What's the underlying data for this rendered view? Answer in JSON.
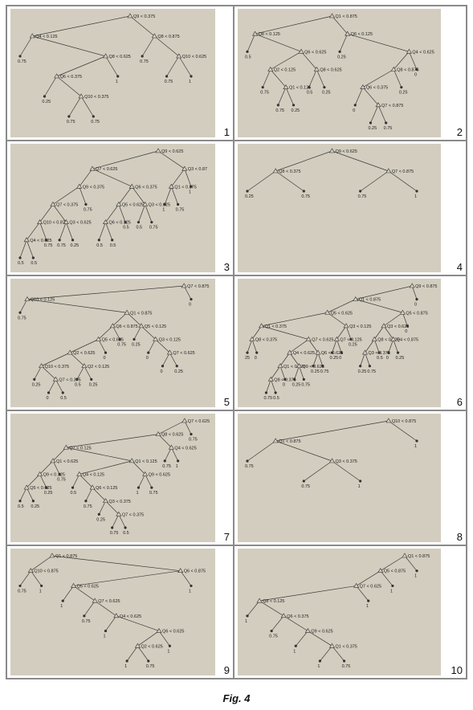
{
  "caption": "Fig. 4",
  "trees": [
    {
      "number": "1",
      "nodes": {
        "n0": {
          "t": "Q9 < 0.375",
          "k": [
            "n1",
            "n2"
          ]
        },
        "n1": {
          "t": "Q4 < 0.125",
          "k": [
            "l1",
            "n3"
          ]
        },
        "l1": {
          "t": "0.75"
        },
        "n3": {
          "t": "Q8 < 0.625",
          "k": [
            "n4",
            "l2"
          ]
        },
        "n4": {
          "t": "Q6 < 0.375",
          "k": [
            "l3",
            "n5"
          ]
        },
        "l3": {
          "t": "0.25"
        },
        "n5": {
          "t": "Q10 < 0.375",
          "k": [
            "l4",
            "l5"
          ]
        },
        "l4": {
          "t": "0.75"
        },
        "l5": {
          "t": "0.75"
        },
        "l2": {
          "t": "1"
        },
        "n2": {
          "t": "Q8 < 0.875",
          "k": [
            "l6",
            "n6"
          ]
        },
        "l6": {
          "t": "0.75"
        },
        "n6": {
          "t": "Q10 < 0.625",
          "k": [
            "l7",
            "l8"
          ]
        },
        "l7": {
          "t": "0.75"
        },
        "l8": {
          "t": "1"
        }
      }
    },
    {
      "number": "2",
      "nodes": {
        "n0": {
          "t": "Q1 < 0.875",
          "k": [
            "n1",
            "n2"
          ]
        },
        "n1": {
          "t": "Q8 < 0.125",
          "k": [
            "l1",
            "n3"
          ]
        },
        "l1": {
          "t": "0.5"
        },
        "n3": {
          "t": "Q6 < 0.625",
          "k": [
            "n4",
            "n5"
          ]
        },
        "n4": {
          "t": "Q2 < 0.125",
          "k": [
            "l2",
            "n6"
          ]
        },
        "l2": {
          "t": "0.75"
        },
        "n6": {
          "t": "Q1 < 0.125",
          "k": [
            "l3",
            "l4"
          ]
        },
        "l3": {
          "t": "0.75"
        },
        "l4": {
          "t": "0.25"
        },
        "n5": {
          "t": "Q8 < 0.625",
          "k": [
            "l5",
            "l6"
          ]
        },
        "l5": {
          "t": "0.5"
        },
        "l6": {
          "t": "0.25"
        },
        "n2": {
          "t": "Q6 < 0.125",
          "k": [
            "l7",
            "n7"
          ]
        },
        "l7": {
          "t": "0.25"
        },
        "n7": {
          "t": "Q4 < 0.625",
          "k": [
            "n8",
            "l8"
          ]
        },
        "n8": {
          "t": "Q8 < 0.875",
          "k": [
            "n9",
            "l9"
          ]
        },
        "n9": {
          "t": "Q6 < 0.375",
          "k": [
            "l10",
            "n10"
          ]
        },
        "l10": {
          "t": "0"
        },
        "n10": {
          "t": "Q7 < 0.875",
          "k": [
            "l11",
            "l12"
          ]
        },
        "l11": {
          "t": "0.25"
        },
        "l12": {
          "t": "0.75"
        },
        "l9": {
          "t": "0.25"
        },
        "l8": {
          "t": "0"
        }
      }
    },
    {
      "number": "3",
      "nodes": {
        "n0": {
          "t": "Q9 < 0.625",
          "k": [
            "n1",
            "n2"
          ]
        },
        "n1": {
          "t": "Q7 < 0.625",
          "k": [
            "n3",
            "n4"
          ]
        },
        "n3": {
          "t": "Q9 < 0.375",
          "k": [
            "n5",
            "l1"
          ]
        },
        "n5": {
          "t": "Q7 < 0.375",
          "k": [
            "n6",
            "n7"
          ]
        },
        "n6": {
          "t": "Q10 < 0.875",
          "k": [
            "n8",
            "l2"
          ]
        },
        "n8": {
          "t": "Q4 < 0.625",
          "k": [
            "l3",
            "l4"
          ]
        },
        "l3": {
          "t": "0.5"
        },
        "l4": {
          "t": "0.5"
        },
        "l2": {
          "t": "0.75"
        },
        "n7": {
          "t": "Q3 < 0.625",
          "k": [
            "l5",
            "l6"
          ]
        },
        "l5": {
          "t": "0.75"
        },
        "l6": {
          "t": "0.25"
        },
        "l1": {
          "t": "0.75"
        },
        "n4": {
          "t": "Q6 < 0.375",
          "k": [
            "n9",
            "n10"
          ]
        },
        "n9": {
          "t": "Q5 < 0.625",
          "k": [
            "n11",
            "l7"
          ]
        },
        "n11": {
          "t": "Q6 < 0.125",
          "k": [
            "l8",
            "l9"
          ]
        },
        "l8": {
          "t": "0.5"
        },
        "l9": {
          "t": "0.5"
        },
        "l7": {
          "t": "0.5"
        },
        "n10": {
          "t": "Q3 < 0.625",
          "k": [
            "l10",
            "l11"
          ]
        },
        "l10": {
          "t": "0.5"
        },
        "l11": {
          "t": "0.75"
        },
        "n2": {
          "t": "Q3 < 0.87",
          "k": [
            "n12",
            "l12"
          ]
        },
        "n12": {
          "t": "Q1 < 0.875",
          "k": [
            "l13",
            "l14"
          ]
        },
        "l13": {
          "t": "1"
        },
        "l14": {
          "t": "0.75"
        },
        "l12": {
          "t": "1"
        }
      }
    },
    {
      "number": "4",
      "nodes": {
        "n0": {
          "t": "Q9 < 0.625",
          "k": [
            "n1",
            "n2"
          ]
        },
        "n1": {
          "t": "Q8 < 0.375",
          "k": [
            "l1",
            "l2"
          ]
        },
        "l1": {
          "t": "0.25"
        },
        "l2": {
          "t": "0.75"
        },
        "n2": {
          "t": "Q7 < 0.875",
          "k": [
            "l3",
            "l4"
          ]
        },
        "l3": {
          "t": "0.75"
        },
        "l4": {
          "t": "1"
        }
      }
    },
    {
      "number": "5",
      "nodes": {
        "n0": {
          "t": "Q7 < 0.875",
          "k": [
            "n1",
            "l1"
          ]
        },
        "l1": {
          "t": "0"
        },
        "n1": {
          "t": "Q10 < 0.125",
          "k": [
            "l2",
            "n2"
          ]
        },
        "l2": {
          "t": "0.75"
        },
        "n2": {
          "t": "Q1 < 0.875",
          "k": [
            "n3",
            "n4"
          ]
        },
        "n3": {
          "t": "Q6 < 0.875",
          "k": [
            "n5",
            "l3"
          ]
        },
        "n5": {
          "t": "Q5 < 0.625",
          "k": [
            "n6",
            "l4"
          ]
        },
        "n6": {
          "t": "Q2 < 0.625",
          "k": [
            "n7",
            "n8"
          ]
        },
        "n7": {
          "t": "Q10 < 0.375",
          "k": [
            "l5",
            "n9"
          ]
        },
        "l5": {
          "t": "0.25"
        },
        "n9": {
          "t": "Q7 < 0.375",
          "k": [
            "l6",
            "l7"
          ]
        },
        "l6": {
          "t": "0"
        },
        "l7": {
          "t": "0.5"
        },
        "n8": {
          "t": "Q2 < 0.125",
          "k": [
            "l8",
            "l9"
          ]
        },
        "l8": {
          "t": "0.5"
        },
        "l9": {
          "t": "0.25"
        },
        "l4": {
          "t": "0"
        },
        "l3": {
          "t": "0.75"
        },
        "n4": {
          "t": "Q5 < 0.125",
          "k": [
            "l10",
            "n10"
          ]
        },
        "l10": {
          "t": "0.25"
        },
        "n10": {
          "t": "Q3 < 0.125",
          "k": [
            "l11",
            "n11"
          ]
        },
        "l11": {
          "t": "0"
        },
        "n11": {
          "t": "Q7 < 0.625",
          "k": [
            "l12",
            "l13"
          ]
        },
        "l12": {
          "t": "0"
        },
        "l13": {
          "t": "0.25"
        }
      }
    },
    {
      "number": "6",
      "nodes": {
        "n0": {
          "t": "Q9 < 0.875",
          "k": [
            "n1",
            "l1"
          ]
        },
        "l1": {
          "t": "0"
        },
        "n1": {
          "t": "Q1 < 0.875",
          "k": [
            "n2",
            "n3"
          ]
        },
        "n2": {
          "t": "Q5 < 0.625",
          "k": [
            "n4",
            "n5"
          ]
        },
        "n4": {
          "t": "Q1 < 0.375",
          "k": [
            "n6",
            "n7"
          ]
        },
        "n6": {
          "t": "Q8 < 0.375",
          "k": [
            "l2",
            "l3"
          ]
        },
        "l2": {
          "t": "25"
        },
        "l3": {
          "t": "0"
        },
        "n7": {
          "t": "Q7 < 0.625",
          "k": [
            "n8",
            "n9"
          ]
        },
        "n8": {
          "t": "Q4 < 0.625",
          "k": [
            "n10",
            "n11"
          ]
        },
        "n10": {
          "t": "Q1 < 0.625",
          "k": [
            "n12",
            "l4"
          ]
        },
        "n12": {
          "t": "Q8 < 0.375",
          "k": [
            "l5",
            "l6"
          ]
        },
        "l5": {
          "t": "0.75"
        },
        "l6": {
          "t": "0.5"
        },
        "l4": {
          "t": "0"
        },
        "n11": {
          "t": "Q9 < 0.625",
          "k": [
            "l7",
            "l8"
          ]
        },
        "l7": {
          "t": "0.25"
        },
        "l8": {
          "t": "0.75"
        },
        "n9": {
          "t": "Q6 < 0.625",
          "k": [
            "l9",
            "l10"
          ]
        },
        "l9": {
          "t": "0.25"
        },
        "l10": {
          "t": "0.75"
        },
        "n5": {
          "t": "Q3 < 0.125",
          "k": [
            "n13",
            "l11"
          ]
        },
        "n13": {
          "t": "Q7 < 0.125",
          "k": [
            "l12",
            "l13"
          ]
        },
        "l12": {
          "t": "0.25"
        },
        "l13": {
          "t": "0"
        },
        "l11": {
          "t": "0.25"
        },
        "n3": {
          "t": "Q5 < 0.875",
          "k": [
            "n14",
            "l14"
          ]
        },
        "n14": {
          "t": "Q3 < 0.625",
          "k": [
            "n15",
            "n16"
          ]
        },
        "n15": {
          "t": "Q8 < 0.625",
          "k": [
            "n17",
            "l15"
          ]
        },
        "n17": {
          "t": "Q3 < 0.375",
          "k": [
            "l16",
            "l17"
          ]
        },
        "l16": {
          "t": "0.25"
        },
        "l17": {
          "t": "0.75"
        },
        "l15": {
          "t": "0.5"
        },
        "n16": {
          "t": "Q4 < 0.875",
          "k": [
            "l18",
            "l19"
          ]
        },
        "l18": {
          "t": "0"
        },
        "l19": {
          "t": "0.25"
        },
        "l14": {
          "t": "0"
        }
      }
    },
    {
      "number": "7",
      "nodes": {
        "n0": {
          "t": "Q7 < 0.625",
          "k": [
            "n1",
            "l1"
          ]
        },
        "l1": {
          "t": "0.75"
        },
        "n1": {
          "t": "Q8 < 0.625",
          "k": [
            "n2",
            "n3"
          ]
        },
        "n2": {
          "t": "Q7 < 0.125",
          "k": [
            "n4",
            "n5"
          ]
        },
        "n4": {
          "t": "Q1 < 0.625",
          "k": [
            "n6",
            "l2"
          ]
        },
        "n6": {
          "t": "Q9 < 0.125",
          "k": [
            "n7",
            "l3"
          ]
        },
        "n7": {
          "t": "Q5 < 0.625",
          "k": [
            "l4",
            "l5"
          ]
        },
        "l4": {
          "t": "0.5"
        },
        "l5": {
          "t": "0.25"
        },
        "l3": {
          "t": "0.25"
        },
        "l2": {
          "t": "0.75"
        },
        "n5": {
          "t": "Q1 < 0.125",
          "k": [
            "n8",
            "n9"
          ]
        },
        "n8": {
          "t": "Q4 < 0.125",
          "k": [
            "l6",
            "n10"
          ]
        },
        "l6": {
          "t": "0.5"
        },
        "n10": {
          "t": "Q6 < 0.125",
          "k": [
            "l7",
            "n11"
          ]
        },
        "l7": {
          "t": "0.75"
        },
        "n11": {
          "t": "Q3 < 0.375",
          "k": [
            "l8",
            "n12"
          ]
        },
        "l8": {
          "t": "0.25"
        },
        "n12": {
          "t": "Q7 < 0.375",
          "k": [
            "l9",
            "l10"
          ]
        },
        "l9": {
          "t": "0.75"
        },
        "l10": {
          "t": "0.5"
        },
        "n9": {
          "t": "Q9 < 0.625",
          "k": [
            "l11",
            "l12"
          ]
        },
        "l11": {
          "t": "1"
        },
        "l12": {
          "t": "0.75"
        },
        "n3": {
          "t": "Q4 < 0.625",
          "k": [
            "l13",
            "l14"
          ]
        },
        "l13": {
          "t": "0.75"
        },
        "l14": {
          "t": "1"
        }
      }
    },
    {
      "number": "8",
      "nodes": {
        "n0": {
          "t": "Q10 < 0.875",
          "k": [
            "n1",
            "l1"
          ]
        },
        "l1": {
          "t": "1"
        },
        "n1": {
          "t": "Q1 < 0.875",
          "k": [
            "l2",
            "n2"
          ]
        },
        "l2": {
          "t": "0.75"
        },
        "n2": {
          "t": "Q3 < 0.375",
          "k": [
            "l3",
            "l4"
          ]
        },
        "l3": {
          "t": "0.75"
        },
        "l4": {
          "t": "1"
        }
      }
    },
    {
      "number": "9",
      "nodes": {
        "n0": {
          "t": "Q1 < 0.875",
          "k": [
            "n1",
            "n2"
          ]
        },
        "n1": {
          "t": "Q10 < 0.875",
          "k": [
            "l1",
            "l2"
          ]
        },
        "l1": {
          "t": "0.75"
        },
        "l2": {
          "t": "1"
        },
        "n2": {
          "t": "Q6 < 0.875",
          "k": [
            "n3",
            "l3"
          ]
        },
        "l3": {
          "t": "1"
        },
        "n3": {
          "t": "Q5 < 0.625",
          "k": [
            "l4",
            "n4"
          ]
        },
        "l4": {
          "t": "1"
        },
        "n4": {
          "t": "Q7 < 0.625",
          "k": [
            "l5",
            "n5"
          ]
        },
        "l5": {
          "t": "0.75"
        },
        "n5": {
          "t": "Q4 < 0.625",
          "k": [
            "l6",
            "n6"
          ]
        },
        "l6": {
          "t": "1"
        },
        "n6": {
          "t": "Q6 < 0.625",
          "k": [
            "n7",
            "l7"
          ]
        },
        "n7": {
          "t": "Q2 < 0.625",
          "k": [
            "l8",
            "l9"
          ]
        },
        "l8": {
          "t": "1"
        },
        "l9": {
          "t": "0.75"
        },
        "l7": {
          "t": "1"
        }
      }
    },
    {
      "number": "10",
      "nodes": {
        "n0": {
          "t": "Q1 < 0.875",
          "k": [
            "n1",
            "l1"
          ]
        },
        "l1": {
          "t": "1"
        },
        "n1": {
          "t": "Q5 < 0.875",
          "k": [
            "n2",
            "l2"
          ]
        },
        "l2": {
          "t": "1"
        },
        "n2": {
          "t": "Q7 < 0.625",
          "k": [
            "n3",
            "l3"
          ]
        },
        "l3": {
          "t": "1"
        },
        "n3": {
          "t": "Q8 < 0.125",
          "k": [
            "l4",
            "n4"
          ]
        },
        "l4": {
          "t": "1"
        },
        "n4": {
          "t": "Q6 < 0.375",
          "k": [
            "l5",
            "n5"
          ]
        },
        "l5": {
          "t": "0.75"
        },
        "n5": {
          "t": "Q9 < 0.625",
          "k": [
            "l6",
            "n6"
          ]
        },
        "l6": {
          "t": "1"
        },
        "n6": {
          "t": "Q1 < 0.375",
          "k": [
            "l7",
            "l8"
          ]
        },
        "l7": {
          "t": "1"
        },
        "l8": {
          "t": "0.75"
        }
      }
    }
  ]
}
